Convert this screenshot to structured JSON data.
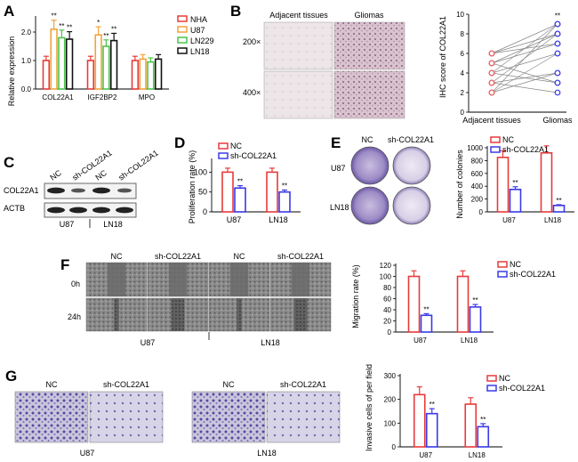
{
  "panels": {
    "A": {
      "letter": "A",
      "ylabel": "Relative expression",
      "yticks": [
        "0.0",
        "1.0",
        "2.0"
      ],
      "legend": [
        "NHA",
        "U87",
        "LN229",
        "LN18"
      ],
      "colors": [
        "#e83a3a",
        "#f2a33a",
        "#4cc44c",
        "#111111"
      ],
      "groups": [
        "COL22A1",
        "IGF2BP2",
        "MPO"
      ],
      "values": [
        [
          1.0,
          2.1,
          1.8,
          1.75
        ],
        [
          1.0,
          1.9,
          1.5,
          1.7
        ],
        [
          1.0,
          1.05,
          0.95,
          1.05
        ]
      ],
      "sig": [
        [
          "",
          "**",
          "**",
          "**"
        ],
        [
          "",
          "*",
          "**",
          "**"
        ],
        [
          "",
          "",
          "",
          ""
        ]
      ]
    },
    "B": {
      "letter": "B",
      "col1": "Adjacent tissues",
      "col2": "Gliomas",
      "row1": "200×",
      "row2": "400×",
      "ylabel": "IHC score of COL22A1",
      "yticks": [
        "0",
        "2",
        "4",
        "6",
        "8",
        "10"
      ],
      "xticks": [
        "Adjacent tissues",
        "Gliomas"
      ],
      "sig": "**",
      "pairs": [
        [
          2,
          9
        ],
        [
          3,
          8
        ],
        [
          4,
          9
        ],
        [
          4,
          6
        ],
        [
          5,
          8
        ],
        [
          6,
          7
        ],
        [
          2,
          6
        ],
        [
          3,
          4
        ],
        [
          5,
          3
        ],
        [
          6,
          9
        ],
        [
          4,
          3
        ],
        [
          2,
          4
        ],
        [
          3,
          2
        ],
        [
          5,
          7
        ],
        [
          6,
          8
        ]
      ]
    },
    "C": {
      "letter": "C",
      "lanes": [
        "NC",
        "sh-COL22A1",
        "NC",
        "sh-COL22A1"
      ],
      "rows": [
        "COL22A1",
        "ACTB"
      ],
      "cells": [
        "U87",
        "LN18"
      ]
    },
    "D": {
      "letter": "D",
      "ylabel": "Proliferation rate (%)",
      "yticks": [
        "0",
        "50",
        "100"
      ],
      "legend": [
        "NC",
        "sh-COL22A1"
      ],
      "groups": [
        "U87",
        "LN18"
      ],
      "values": [
        [
          100,
          60
        ],
        [
          100,
          50
        ]
      ],
      "sig": "**"
    },
    "E": {
      "letter": "E",
      "col1": "NC",
      "col2": "sh-COL22A1",
      "row1": "U87",
      "row2": "LN18",
      "ylabel": "Number of colonies",
      "yticks": [
        "0",
        "200",
        "400",
        "600",
        "800",
        "1000"
      ],
      "legend": [
        "NC",
        "sh-COL22A1"
      ],
      "groups": [
        "U87",
        "LN18"
      ],
      "values": [
        [
          850,
          350
        ],
        [
          920,
          100
        ]
      ],
      "sig": "**"
    },
    "F": {
      "letter": "F",
      "cols": [
        "NC",
        "sh-COL22A1",
        "NC",
        "sh-COL22A1"
      ],
      "rows": [
        "0h",
        "24h"
      ],
      "cells": [
        "U87",
        "LN18"
      ],
      "ylabel": "Migration rate (%)",
      "yticks": [
        "0",
        "20",
        "40",
        "60",
        "80",
        "100",
        "120"
      ],
      "legend": [
        "NC",
        "sh-COL22A1"
      ],
      "groups": [
        "U87",
        "LN18"
      ],
      "values": [
        [
          100,
          30
        ],
        [
          100,
          45
        ]
      ],
      "sig": "**"
    },
    "G": {
      "letter": "G",
      "cols": [
        "NC",
        "sh-COL22A1",
        "NC",
        "sh-COL22A1"
      ],
      "cells": [
        "U87",
        "LN18"
      ],
      "ylabel": "Invasive cells of per field",
      "yticks": [
        "0",
        "100",
        "200",
        "300"
      ],
      "legend": [
        "NC",
        "sh-COL22A1"
      ],
      "groups": [
        "U87",
        "LN18"
      ],
      "values": [
        [
          220,
          140
        ],
        [
          180,
          85
        ]
      ],
      "sig": "**"
    }
  },
  "colors": {
    "nc": "#e83a3a",
    "sh": "#3a3ae8",
    "blot": "#222222",
    "stain": "#6a4aa8"
  },
  "chart_data": [
    {
      "type": "bar",
      "categories": [
        "COL22A1",
        "IGF2BP2",
        "MPO"
      ],
      "series": [
        {
          "name": "NHA",
          "values": [
            1.0,
            1.0,
            1.0
          ]
        },
        {
          "name": "U87",
          "values": [
            2.1,
            1.9,
            1.05
          ]
        },
        {
          "name": "LN229",
          "values": [
            1.8,
            1.5,
            0.95
          ]
        },
        {
          "name": "LN18",
          "values": [
            1.75,
            1.7,
            1.05
          ]
        }
      ],
      "ylabel": "Relative expression",
      "ylim": [
        0,
        2.5
      ]
    },
    {
      "type": "scatter",
      "categories": [
        "Adjacent tissues",
        "Gliomas"
      ],
      "ylabel": "IHC score of COL22A1",
      "ylim": [
        0,
        10
      ]
    },
    {
      "type": "bar",
      "categories": [
        "U87",
        "LN18"
      ],
      "series": [
        {
          "name": "NC",
          "values": [
            100,
            100
          ]
        },
        {
          "name": "sh-COL22A1",
          "values": [
            60,
            50
          ]
        }
      ],
      "ylabel": "Proliferation rate (%)",
      "ylim": [
        0,
        130
      ]
    },
    {
      "type": "bar",
      "categories": [
        "U87",
        "LN18"
      ],
      "series": [
        {
          "name": "NC",
          "values": [
            850,
            920
          ]
        },
        {
          "name": "sh-COL22A1",
          "values": [
            350,
            100
          ]
        }
      ],
      "ylabel": "Number of colonies",
      "ylim": [
        0,
        1000
      ]
    },
    {
      "type": "bar",
      "categories": [
        "U87",
        "LN18"
      ],
      "series": [
        {
          "name": "NC",
          "values": [
            100,
            100
          ]
        },
        {
          "name": "sh-COL22A1",
          "values": [
            30,
            45
          ]
        }
      ],
      "ylabel": "Migration rate (%)",
      "ylim": [
        0,
        120
      ]
    },
    {
      "type": "bar",
      "categories": [
        "U87",
        "LN18"
      ],
      "series": [
        {
          "name": "NC",
          "values": [
            220,
            180
          ]
        },
        {
          "name": "sh-COL22A1",
          "values": [
            140,
            85
          ]
        }
      ],
      "ylabel": "Invasive cells of per field",
      "ylim": [
        0,
        300
      ]
    }
  ]
}
